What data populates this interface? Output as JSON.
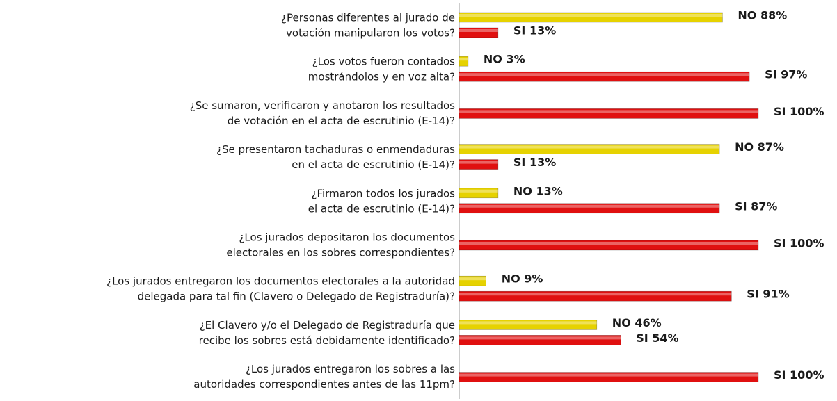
{
  "chart_data": {
    "type": "bar",
    "orientation": "horizontal",
    "categories": [
      [
        "¿Personas diferentes al jurado de",
        "votación manipularon los votos?"
      ],
      [
        "¿Los votos fueron contados",
        "mostrándolos y en voz alta?"
      ],
      [
        "¿Se sumaron, verificaron y anotaron los resultados",
        "de votación en el acta de escrutinio (E-14)?"
      ],
      [
        "¿Se presentaron tachaduras o enmendaduras",
        "en el acta de escrutinio (E-14)?"
      ],
      [
        "¿Firmaron todos los jurados",
        "el acta de escrutinio (E-14)?"
      ],
      [
        "¿Los jurados depositaron los documentos",
        "electorales en los sobres correspondientes?"
      ],
      [
        "¿Los jurados entregaron los documentos electorales a la autoridad",
        "delegada para tal fin (Clavero o Delegado de Registraduría)?"
      ],
      [
        "¿El Clavero y/o el Delegado de Registraduría que",
        "recibe los sobres está debidamente identificado?"
      ],
      [
        "¿Los jurados entregaron los sobres a las",
        "autoridades correspondientes antes de las 11pm?"
      ]
    ],
    "series": [
      {
        "color": "#e6d200",
        "values": [
          88,
          3,
          null,
          87,
          13,
          null,
          9,
          46,
          null
        ],
        "value_labels": [
          "NO 88%",
          "NO 3%",
          null,
          "NO 87%",
          "NO 13%",
          null,
          "NO 9%",
          "NO 46%",
          null
        ]
      },
      {
        "color": "#e01010",
        "values": [
          13,
          97,
          100,
          13,
          87,
          100,
          91,
          54,
          100
        ],
        "value_labels": [
          "SI 13%",
          "SI 97%",
          "SI 100%",
          "SI 13%",
          "SI 87%",
          "SI 100%",
          "SI 91%",
          "SI 54%",
          "SI 100%"
        ]
      }
    ],
    "xlim": [
      0,
      100
    ]
  }
}
